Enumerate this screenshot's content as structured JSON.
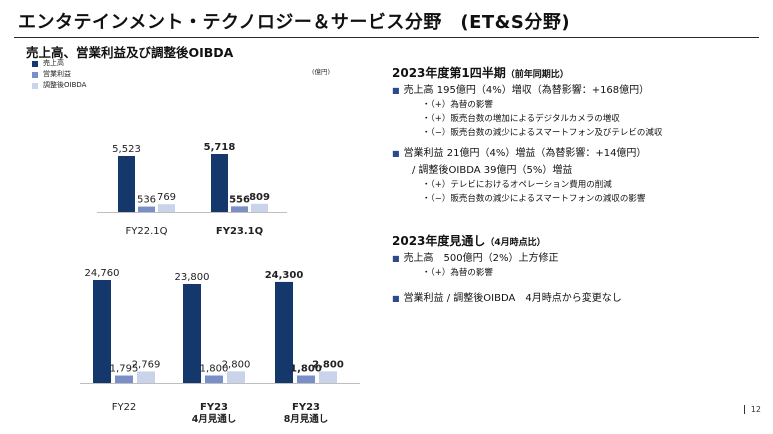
{
  "slide": {
    "title": "エンタテインメント・テクノロジー＆サービス分野　(ET&S分野)",
    "page_number": "12"
  },
  "chart_data": {
    "type": "bar",
    "title": "売上高、営業利益及び調整後OIBDA",
    "unit": "(億円)",
    "series_names": [
      "売上高",
      "営業利益",
      "調整後OIBDA"
    ],
    "colors": {
      "sales": "#14386b",
      "op_income": "#7a8fc7",
      "oibda": "#c9d3ea"
    },
    "groups": [
      {
        "category": "FY22.1Q",
        "label_lines": [
          "FY22.1Q"
        ],
        "values": [
          5523,
          536,
          769
        ],
        "value_labels": [
          "5,523",
          "536",
          "769"
        ],
        "emphasis": false
      },
      {
        "category": "FY23.1Q",
        "label_lines": [
          "FY23.1Q"
        ],
        "values": [
          5718,
          556,
          809
        ],
        "value_labels": [
          "5,718",
          "556",
          "809"
        ],
        "emphasis": true
      },
      {
        "category": "FY22",
        "label_lines": [
          "FY22"
        ],
        "values": [
          24760,
          1795,
          2769
        ],
        "value_labels": [
          "24,760",
          "1,795",
          "2,769"
        ],
        "emphasis": false
      },
      {
        "category": "FY23 4月見通し",
        "label_lines": [
          "FY23",
          "4月見通し"
        ],
        "values": [
          23800,
          1800,
          2800
        ],
        "value_labels": [
          "23,800",
          "1,800",
          "2,800"
        ],
        "emphasis": false
      },
      {
        "category": "FY23 8月見通し",
        "label_lines": [
          "FY23",
          "8月見通し"
        ],
        "values": [
          24300,
          1800,
          2800
        ],
        "value_labels": [
          "24,300",
          "1,800",
          "2,800"
        ],
        "emphasis": true
      }
    ]
  },
  "right_panel": {
    "q1": {
      "heading": "2023年度第1四半期",
      "heading_sub": "（前年同期比）",
      "bullets": [
        {
          "lines": [
            "売上高 195億円（4%）増収（為替影響：+168億円）"
          ],
          "subs": [
            "・（+）為替の影響",
            "・（+）販売台数の増加によるデジタルカメラの増収",
            "・（−）販売台数の減少によるスマートフォン及びテレビの減収"
          ]
        },
        {
          "lines": [
            "営業利益 21億円（4%）増益（為替影響：+14億円）",
            "/ 調整後OIBDA 39億円（5%）増益"
          ],
          "subs": [
            "・（+）テレビにおけるオペレーション費用の削減",
            "・（−）販売台数の減少によるスマートフォンの減収の影響"
          ]
        }
      ]
    },
    "forecast": {
      "heading": "2023年度見通し",
      "heading_sub": "（4月時点比）",
      "bullets": [
        {
          "lines": [
            "売上高　500億円（2%）上方修正"
          ],
          "subs": [
            "・（+）為替の影響"
          ]
        },
        {
          "lines": [
            "営業利益 / 調整後OIBDA　4月時点から変更なし"
          ],
          "subs": []
        }
      ]
    }
  }
}
